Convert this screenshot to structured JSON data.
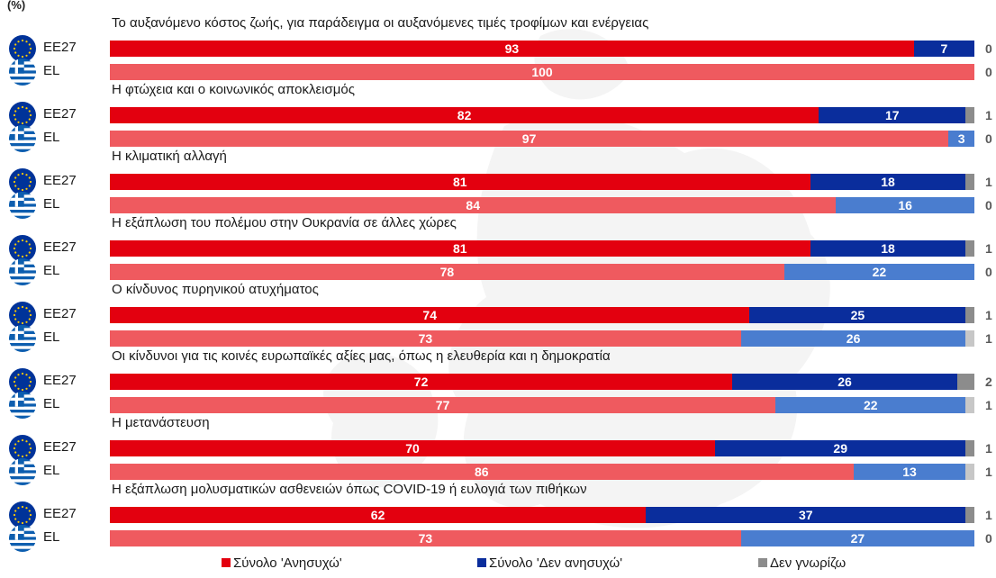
{
  "unit": "(%)",
  "chart_data": {
    "type": "bar",
    "orientation": "horizontal",
    "stacked": true,
    "xlim": [
      0,
      100
    ],
    "series_names": [
      "Σύνολο 'Ανησυχώ'",
      "Σύνολο 'Δεν ανησυχώ'",
      "Δεν γνωρίζω"
    ],
    "colors": {
      "worry_eu": "#e3000f",
      "worry_el": "#ef5a5f",
      "notworry_eu": "#0a2d9c",
      "notworry_el": "#4a7dcf",
      "dk_eu": "#8c8c8c",
      "dk_el": "#c7c7c7"
    },
    "groups": [
      {
        "title": "Το αυξανόμενο κόστος ζωής, για παράδειγμα οι αυξανόμενες τιμές τροφίμων και ενέργειας",
        "rows": [
          {
            "label": "ΕΕ27",
            "values": [
              93,
              7,
              0
            ]
          },
          {
            "label": "EL",
            "values": [
              100,
              0,
              0
            ]
          }
        ]
      },
      {
        "title": "Η φτώχεια και ο κοινωνικός αποκλεισμός",
        "rows": [
          {
            "label": "ΕΕ27",
            "values": [
              82,
              17,
              1
            ]
          },
          {
            "label": "EL",
            "values": [
              97,
              3,
              0
            ]
          }
        ]
      },
      {
        "title": "Η κλιματική αλλαγή",
        "rows": [
          {
            "label": "ΕΕ27",
            "values": [
              81,
              18,
              1
            ]
          },
          {
            "label": "EL",
            "values": [
              84,
              16,
              0
            ]
          }
        ]
      },
      {
        "title": "Η εξάπλωση του πολέμου στην Ουκρανία σε άλλες χώρες",
        "rows": [
          {
            "label": "ΕΕ27",
            "values": [
              81,
              18,
              1
            ]
          },
          {
            "label": "EL",
            "values": [
              78,
              22,
              0
            ]
          }
        ]
      },
      {
        "title": "Ο κίνδυνος πυρηνικού ατυχήματος",
        "rows": [
          {
            "label": "ΕΕ27",
            "values": [
              74,
              25,
              1
            ]
          },
          {
            "label": "EL",
            "values": [
              73,
              26,
              1
            ]
          }
        ]
      },
      {
        "title": "Οι κίνδυνοι για τις κοινές ευρωπαϊκές αξίες μας, όπως η ελευθερία και η δημοκρατία",
        "rows": [
          {
            "label": "ΕΕ27",
            "values": [
              72,
              26,
              2
            ]
          },
          {
            "label": "EL",
            "values": [
              77,
              22,
              1
            ]
          }
        ]
      },
      {
        "title": "Η μετανάστευση",
        "rows": [
          {
            "label": "ΕΕ27",
            "values": [
              70,
              29,
              1
            ]
          },
          {
            "label": "EL",
            "values": [
              86,
              13,
              1
            ]
          }
        ]
      },
      {
        "title": "Η εξάπλωση μολυσματικών ασθενειών όπως COVID-19 ή ευλογιά των πιθήκων",
        "rows": [
          {
            "label": "ΕΕ27",
            "values": [
              62,
              37,
              1
            ]
          },
          {
            "label": "EL",
            "values": [
              73,
              27,
              0
            ]
          }
        ]
      }
    ]
  }
}
